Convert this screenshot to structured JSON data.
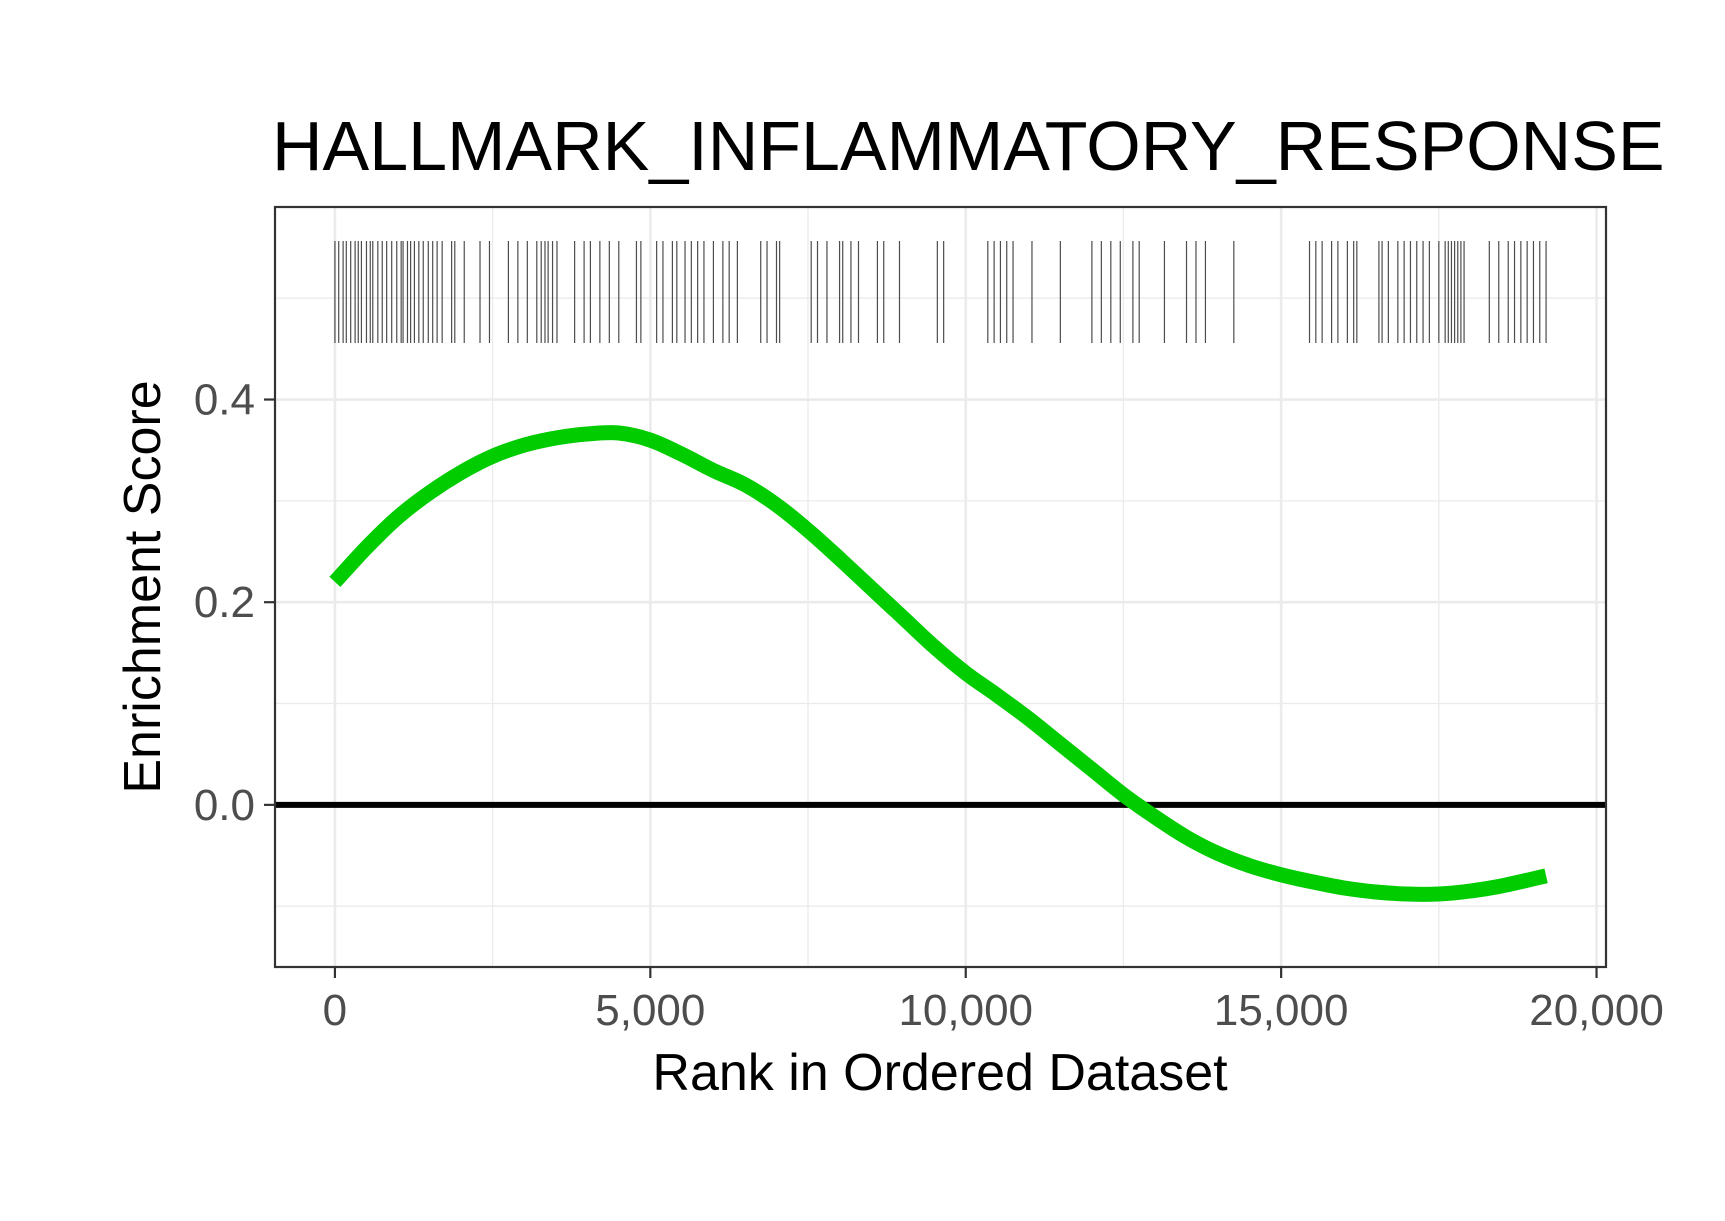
{
  "chart_data": {
    "type": "line",
    "title": "HALLMARK_INFLAMMATORY_RESPONSE",
    "xlabel": "Rank in Ordered Dataset",
    "ylabel": "Enrichment Score",
    "xlim": [
      -950,
      20150
    ],
    "ylim": [
      -0.16,
      0.59
    ],
    "x_ticks": [
      0,
      5000,
      10000,
      15000,
      20000
    ],
    "x_tick_labels": [
      "0",
      "5,000",
      "10,000",
      "15,000",
      "20,000"
    ],
    "y_ticks": [
      0.0,
      0.2,
      0.4
    ],
    "y_tick_labels": [
      "0.0",
      "0.2",
      "0.4"
    ],
    "grid": true,
    "reference_line_y": 0,
    "colors": {
      "es_curve": "#00cc00",
      "hits": "#4d4d4d",
      "zero_line": "#000000",
      "grid": "#ebebeb",
      "panel_border": "#333333"
    },
    "series": [
      {
        "x": [
          0,
          500,
          1000,
          1500,
          2000,
          2500,
          3000,
          3500,
          4000,
          4500,
          5000,
          5500,
          6000,
          6500,
          7000,
          7500,
          8000,
          8500,
          9000,
          9500,
          10000,
          10500,
          11000,
          11500,
          12000,
          12500,
          13000,
          13500,
          14000,
          14500,
          15000,
          15500,
          16000,
          16500,
          17000,
          17500,
          18000,
          18500,
          19200
        ],
        "y": [
          0.22,
          0.254,
          0.284,
          0.308,
          0.328,
          0.344,
          0.355,
          0.362,
          0.366,
          0.367,
          0.36,
          0.346,
          0.33,
          0.316,
          0.296,
          0.271,
          0.243,
          0.214,
          0.185,
          0.156,
          0.13,
          0.108,
          0.085,
          0.06,
          0.035,
          0.01,
          -0.012,
          -0.032,
          -0.048,
          -0.06,
          -0.069,
          -0.076,
          -0.082,
          -0.086,
          -0.088,
          -0.088,
          -0.085,
          -0.08,
          -0.07
        ]
      }
    ],
    "hits": [
      0,
      60,
      130,
      180,
      250,
      320,
      370,
      420,
      500,
      560,
      600,
      680,
      750,
      820,
      900,
      980,
      1050,
      1080,
      1150,
      1200,
      1260,
      1330,
      1400,
      1480,
      1550,
      1620,
      1700,
      1850,
      1900,
      2050,
      2300,
      2450,
      2750,
      2900,
      3050,
      3200,
      3270,
      3330,
      3380,
      3450,
      3520,
      3800,
      3950,
      4050,
      4200,
      4350,
      4500,
      4780,
      4850,
      5100,
      5200,
      5350,
      5420,
      5550,
      5650,
      5750,
      5850,
      6000,
      6150,
      6250,
      6380,
      6750,
      6850,
      7000,
      7050,
      7550,
      7650,
      7800,
      8000,
      8050,
      8180,
      8300,
      8600,
      8700,
      8950,
      9550,
      9650,
      10350,
      10450,
      10550,
      10650,
      10750,
      11050,
      11500,
      12000,
      12150,
      12300,
      12450,
      12650,
      12750,
      13150,
      13500,
      13650,
      13800,
      14250,
      15450,
      15550,
      15650,
      15800,
      15900,
      16050,
      16150,
      16200,
      16550,
      16600,
      16700,
      16850,
      16950,
      17050,
      17150,
      17250,
      17350,
      17500,
      17600,
      17650,
      17700,
      17750,
      17800,
      17850,
      17900,
      18300,
      18450,
      18600,
      18700,
      18800,
      18900,
      19000,
      19100,
      19200
    ]
  }
}
